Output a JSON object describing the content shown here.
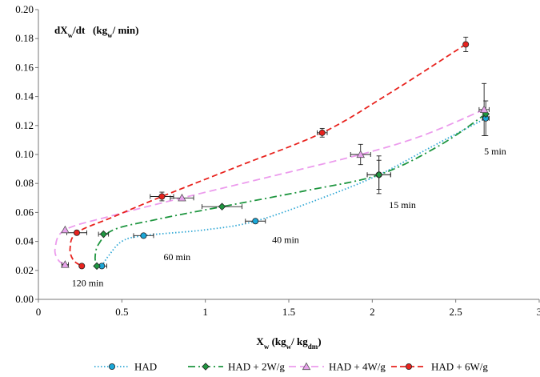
{
  "chart_data": {
    "type": "scatter",
    "ylabel": {
      "main": "dX",
      "sub1": "w",
      "mid": "/dt   (kg",
      "sub2": "w",
      "end": "/ min)"
    },
    "xlabel": {
      "main": "X",
      "sub1": "w",
      "mid": " (kg",
      "sub2": "w",
      "mid2": "/ kg",
      "sub3": "dm",
      "end": ")"
    },
    "xlim": [
      0,
      3
    ],
    "ylim": [
      0,
      0.2
    ],
    "xticks": [
      "0",
      "0.5",
      "1",
      "1.5",
      "2",
      "2.5",
      "3"
    ],
    "yticks": [
      "0.00",
      "0.02",
      "0.04",
      "0.06",
      "0.08",
      "0.10",
      "0.12",
      "0.14",
      "0.16",
      "0.18",
      "0.20"
    ],
    "grid": false,
    "legend_position": "bottom",
    "series": [
      {
        "name": "HAD",
        "color": "#1aa7d8",
        "line_color": "#33a9d6",
        "marker": "circle",
        "dash": "1.5,2.5",
        "points": [
          {
            "x": 2.68,
            "y": 0.125,
            "xerr": 0.02,
            "yerr": 0.012
          },
          {
            "x": 2.04,
            "y": 0.086,
            "xerr": 0.07,
            "yerr": 0.01
          },
          {
            "x": 1.3,
            "y": 0.054,
            "xerr": 0.06,
            "yerr": 0.0
          },
          {
            "x": 0.63,
            "y": 0.044,
            "xerr": 0.06,
            "yerr": 0.0
          },
          {
            "x": 0.38,
            "y": 0.023,
            "xerr": 0.03,
            "yerr": 0.0
          }
        ],
        "curve": [
          [
            2.68,
            0.125
          ],
          [
            2.35,
            0.105
          ],
          [
            2.04,
            0.086
          ],
          [
            1.7,
            0.07
          ],
          [
            1.3,
            0.054
          ],
          [
            1.0,
            0.048
          ],
          [
            0.63,
            0.044
          ],
          [
            0.5,
            0.04
          ],
          [
            0.42,
            0.03
          ],
          [
            0.38,
            0.023
          ]
        ]
      },
      {
        "name": "HAD + 2W/g",
        "color": "#1f9640",
        "line_color": "#1f9640",
        "marker": "diamond",
        "dash": "9,4,2,4",
        "points": [
          {
            "x": 2.68,
            "y": 0.128,
            "xerr": 0.0,
            "yerr": 0.0
          },
          {
            "x": 2.04,
            "y": 0.086,
            "xerr": 0.07,
            "yerr": 0.013
          },
          {
            "x": 1.1,
            "y": 0.064,
            "xerr": 0.12,
            "yerr": 0.0
          },
          {
            "x": 0.39,
            "y": 0.045,
            "xerr": 0.03,
            "yerr": 0.0
          },
          {
            "x": 0.35,
            "y": 0.023,
            "xerr": 0.0,
            "yerr": 0.0
          }
        ],
        "curve": [
          [
            2.68,
            0.128
          ],
          [
            2.4,
            0.106
          ],
          [
            2.04,
            0.086
          ],
          [
            1.6,
            0.075
          ],
          [
            1.1,
            0.064
          ],
          [
            0.7,
            0.055
          ],
          [
            0.45,
            0.048
          ],
          [
            0.36,
            0.038
          ],
          [
            0.34,
            0.029
          ],
          [
            0.35,
            0.023
          ]
        ]
      },
      {
        "name": "HAD + 4W/g",
        "color": "#e8a3ec",
        "line_color": "#ec9ced",
        "marker": "triangle",
        "dash": "9,5",
        "points": [
          {
            "x": 2.67,
            "y": 0.131,
            "xerr": 0.03,
            "yerr": 0.018
          },
          {
            "x": 1.93,
            "y": 0.1,
            "xerr": 0.06,
            "yerr": 0.007
          },
          {
            "x": 0.86,
            "y": 0.07,
            "xerr": 0.07,
            "yerr": 0.0
          },
          {
            "x": 0.16,
            "y": 0.048,
            "xerr": 0.0,
            "yerr": 0.0
          },
          {
            "x": 0.16,
            "y": 0.024,
            "xerr": 0.02,
            "yerr": 0.0
          }
        ],
        "curve": [
          [
            2.67,
            0.131
          ],
          [
            2.3,
            0.113
          ],
          [
            1.93,
            0.1
          ],
          [
            1.4,
            0.085
          ],
          [
            0.86,
            0.07
          ],
          [
            0.45,
            0.058
          ],
          [
            0.16,
            0.048
          ],
          [
            0.1,
            0.035
          ],
          [
            0.12,
            0.027
          ],
          [
            0.16,
            0.024
          ]
        ]
      },
      {
        "name": "HAD + 6W/g",
        "color": "#e8231e",
        "line_color": "#e8231e",
        "marker": "circle",
        "dash": "7,4",
        "points": [
          {
            "x": 2.56,
            "y": 0.176,
            "xerr": 0.0,
            "yerr": 0.005
          },
          {
            "x": 1.7,
            "y": 0.115,
            "xerr": 0.03,
            "yerr": 0.003
          },
          {
            "x": 0.74,
            "y": 0.071,
            "xerr": 0.07,
            "yerr": 0.003
          },
          {
            "x": 0.23,
            "y": 0.046,
            "xerr": 0.06,
            "yerr": 0.0
          },
          {
            "x": 0.26,
            "y": 0.023,
            "xerr": 0.0,
            "yerr": 0.0
          }
        ],
        "curve": [
          [
            2.56,
            0.176
          ],
          [
            2.1,
            0.142
          ],
          [
            1.7,
            0.115
          ],
          [
            1.2,
            0.092
          ],
          [
            0.74,
            0.071
          ],
          [
            0.45,
            0.057
          ],
          [
            0.23,
            0.046
          ],
          [
            0.19,
            0.035
          ],
          [
            0.21,
            0.027
          ],
          [
            0.26,
            0.023
          ]
        ]
      }
    ],
    "annotations": [
      {
        "text": "5 min",
        "x": 2.67,
        "y": 0.1
      },
      {
        "text": "15 min",
        "x": 2.1,
        "y": 0.063
      },
      {
        "text": "40 min",
        "x": 1.4,
        "y": 0.039
      },
      {
        "text": "60 min",
        "x": 0.75,
        "y": 0.027
      },
      {
        "text": "120 min",
        "x": 0.2,
        "y": 0.009
      }
    ]
  }
}
